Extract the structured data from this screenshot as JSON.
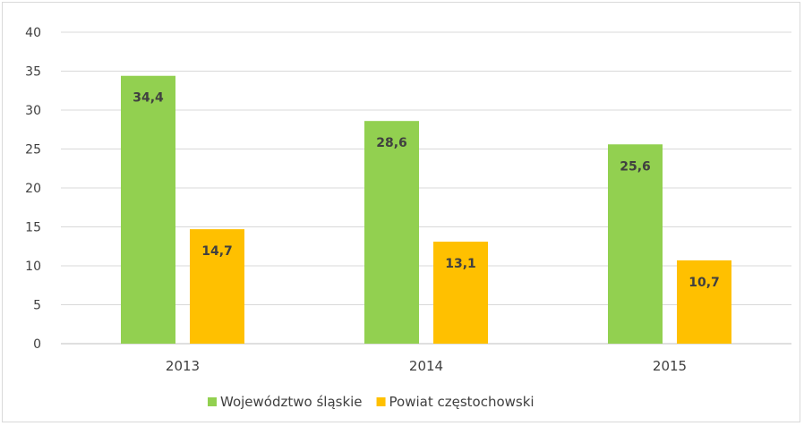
{
  "chart_data": {
    "type": "bar",
    "categories": [
      "2013",
      "2014",
      "2015"
    ],
    "series": [
      {
        "name": "Województwo śląskie",
        "values": [
          34.4,
          28.6,
          25.6
        ],
        "color": "#92d050"
      },
      {
        "name": "Powiat częstochowski",
        "values": [
          14.7,
          13.1,
          10.7
        ],
        "color": "#ffc000"
      }
    ],
    "value_labels": [
      [
        "34,4",
        "28,6",
        "25,6"
      ],
      [
        "14,7",
        "13,1",
        "10,7"
      ]
    ],
    "ylim": [
      0,
      40
    ],
    "yticks": [
      0,
      5,
      10,
      15,
      20,
      25,
      30,
      35,
      40
    ],
    "grid": true,
    "legend_position": "bottom",
    "gridline_color": "#d9d9d9",
    "axis_color": "#bfbfbf"
  }
}
